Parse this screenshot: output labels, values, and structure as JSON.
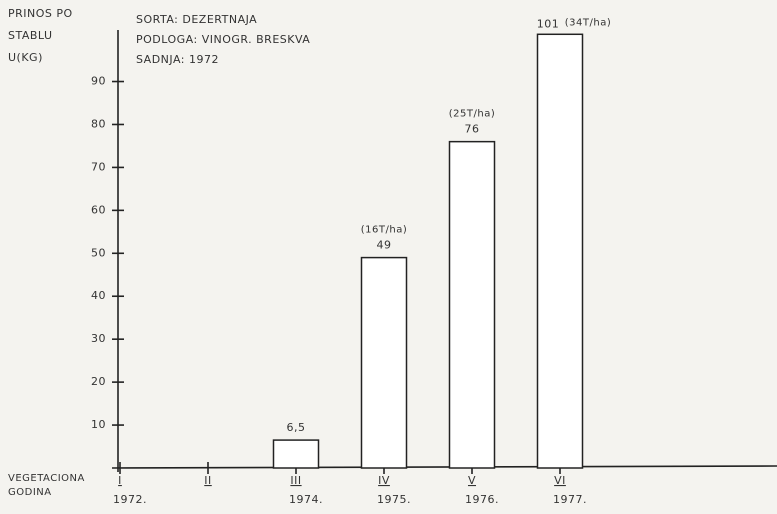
{
  "chart_data": {
    "type": "bar",
    "ylabel": [
      "PRINOS PO",
      "STABLU",
      "U(KG)"
    ],
    "xlabel": [
      "VEGETACIONA",
      "GODINA"
    ],
    "annotations": [
      "SORTA: DEZERTNAJA",
      "PODLOGA: VINOGR. BRESKVA",
      "SADNJA: 1972"
    ],
    "categories": [
      "I",
      "II",
      "III",
      "IV",
      "V",
      "VI"
    ],
    "years": [
      "1972.",
      null,
      "1974.",
      "1975.",
      "1976.",
      "1977."
    ],
    "values": [
      null,
      null,
      6.5,
      49,
      76,
      101
    ],
    "value_labels": [
      null,
      null,
      "6,5",
      "49",
      "76",
      "101"
    ],
    "value_notes": [
      null,
      null,
      null,
      "(16T/ha)",
      "(25T/ha)",
      "(34T/ha)"
    ],
    "color": "#ffffff",
    "ylim": [
      0,
      102
    ],
    "yticks": [
      10,
      20,
      30,
      40,
      50,
      60,
      70,
      80,
      90
    ]
  }
}
